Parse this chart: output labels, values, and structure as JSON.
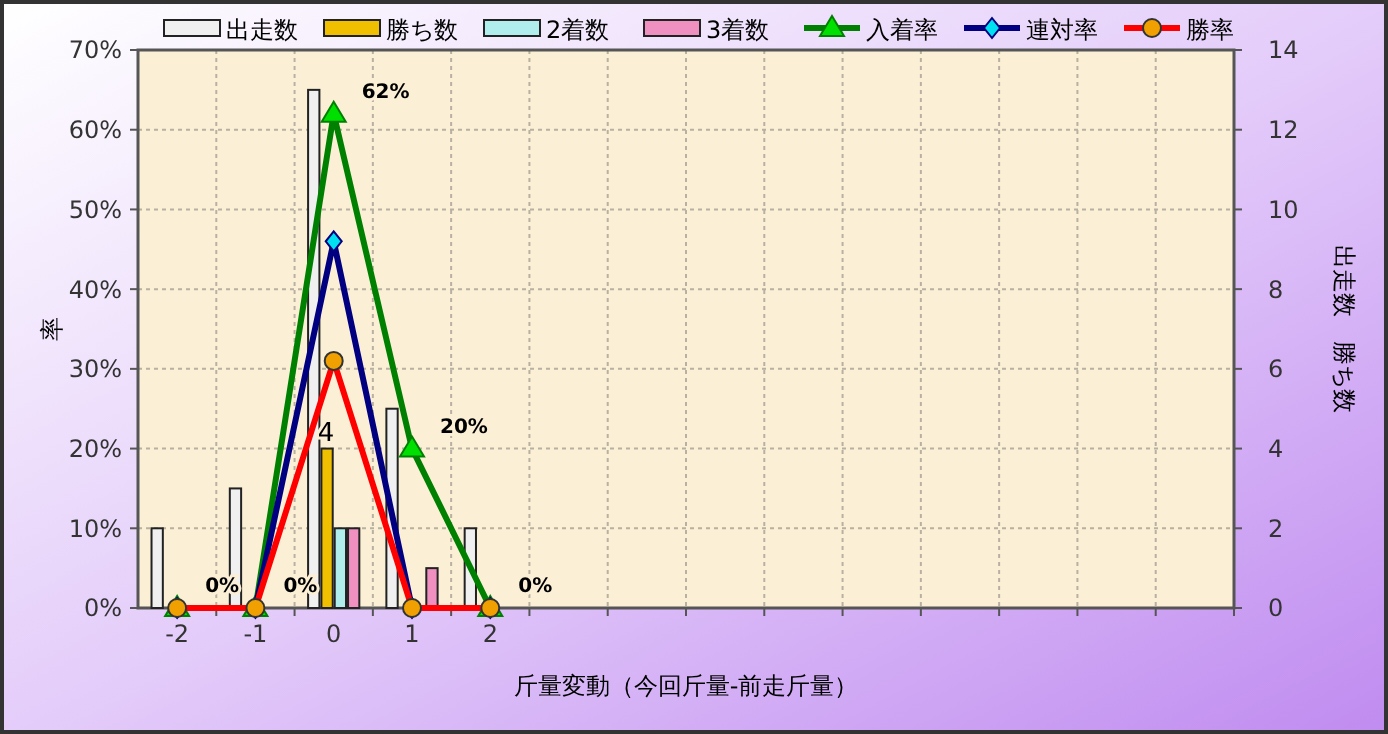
{
  "chart_data": {
    "type": "bar",
    "xlabel": "斤量変動（今回斤量-前走斤量）",
    "ylabel": "率",
    "y2label": "出走数　勝ち数",
    "categories": [
      "-2",
      "-1",
      "0",
      "1",
      "2",
      null,
      null,
      null,
      null,
      null,
      null,
      null,
      null,
      null
    ],
    "series": [
      {
        "name": "出走数",
        "axis": "y2",
        "color": "#f0f0f0",
        "values": [
          2,
          3,
          13,
          5,
          2,
          null,
          null,
          null,
          null,
          null,
          null,
          null,
          null,
          null
        ]
      },
      {
        "name": "勝ち数",
        "axis": "y2",
        "color": "#f0c000",
        "values": [
          0,
          0,
          4,
          0,
          0,
          null,
          null,
          null,
          null,
          null,
          null,
          null,
          null,
          null
        ],
        "value_labels": [
          null,
          null,
          "4",
          null,
          null,
          null,
          null,
          null,
          null,
          null,
          null,
          null,
          null,
          null
        ]
      },
      {
        "name": "2着数",
        "axis": "y2",
        "color": "#b0eeee",
        "values": [
          0,
          0,
          2,
          0,
          0,
          null,
          null,
          null,
          null,
          null,
          null,
          null,
          null,
          null
        ]
      },
      {
        "name": "3着数",
        "axis": "y2",
        "color": "#f090c0",
        "values": [
          0,
          0,
          2,
          1,
          0,
          null,
          null,
          null,
          null,
          null,
          null,
          null,
          null,
          null
        ]
      },
      {
        "name": "入着率",
        "type": "line",
        "marker": "triangle",
        "color": "#008000",
        "values": [
          0,
          0,
          62,
          20,
          0,
          null,
          null,
          null,
          null,
          null,
          null,
          null,
          null,
          null
        ],
        "value_labels": [
          "0%",
          "0%",
          "62%",
          "20%",
          "0%",
          null,
          null,
          null,
          null,
          null,
          null,
          null,
          null,
          null
        ]
      },
      {
        "name": "連対率",
        "type": "line",
        "marker": "diamond",
        "color": "#000080",
        "values": [
          0,
          0,
          46,
          0,
          0,
          null,
          null,
          null,
          null,
          null,
          null,
          null,
          null,
          null
        ]
      },
      {
        "name": "勝率",
        "type": "line",
        "marker": "circle",
        "color": "#ff0000",
        "values": [
          0,
          0,
          31,
          0,
          0,
          null,
          null,
          null,
          null,
          null,
          null,
          null,
          null,
          null
        ]
      }
    ],
    "ylim": [
      0,
      70
    ],
    "yticks": [
      {
        "value": 0,
        "label": "0%"
      },
      {
        "value": 10,
        "label": "10%"
      },
      {
        "value": 20,
        "label": "20%"
      },
      {
        "value": 30,
        "label": "30%"
      },
      {
        "value": 40,
        "label": "40%"
      },
      {
        "value": 50,
        "label": "50%"
      },
      {
        "value": 60,
        "label": "60%"
      },
      {
        "value": 70,
        "label": "70%"
      }
    ],
    "y2lim": [
      0,
      14
    ],
    "y2ticks": [
      0,
      2,
      4,
      6,
      8,
      10,
      12,
      14
    ],
    "grid": true,
    "legend": "top"
  }
}
